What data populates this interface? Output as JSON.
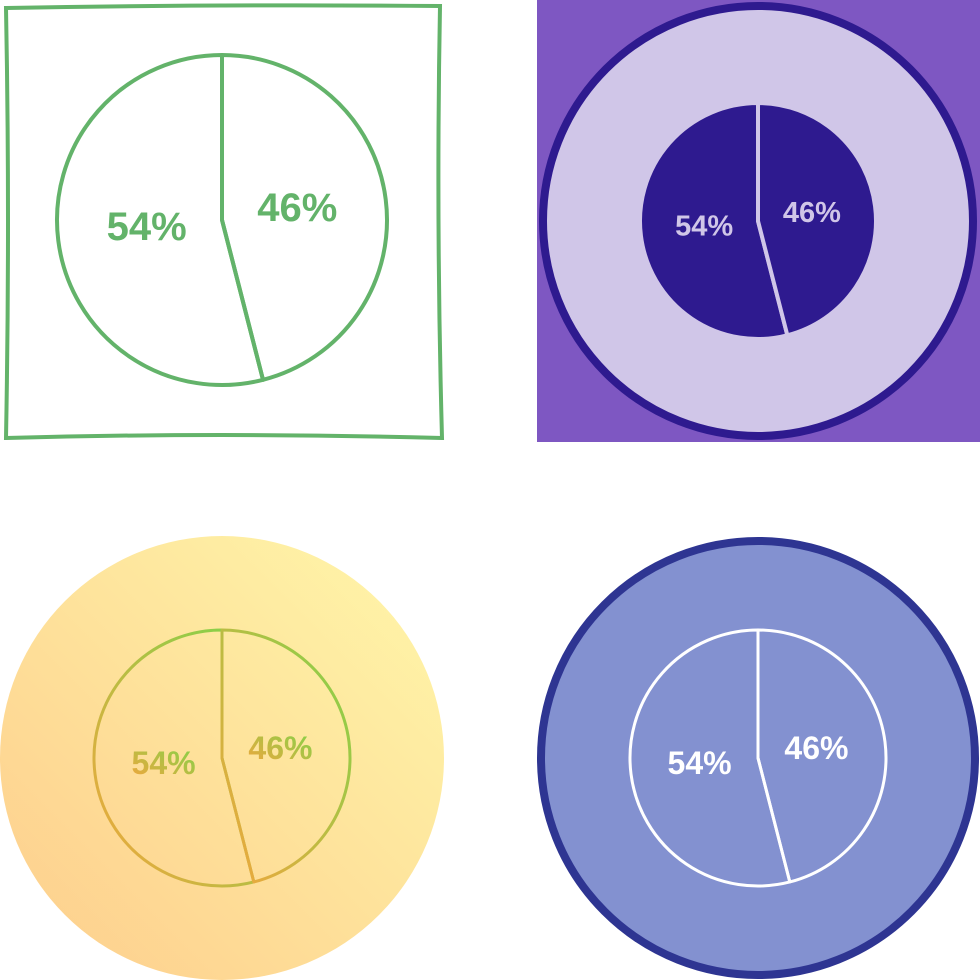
{
  "chart_data": [
    {
      "type": "pie",
      "values": [
        54,
        46
      ],
      "value_labels": [
        "54%",
        "46%"
      ]
    },
    {
      "type": "pie",
      "values": [
        54,
        46
      ],
      "value_labels": [
        "54%",
        "46%"
      ]
    },
    {
      "type": "pie",
      "values": [
        54,
        46
      ],
      "value_labels": [
        "54%",
        "46%"
      ]
    },
    {
      "type": "pie",
      "values": [
        54,
        46
      ],
      "value_labels": [
        "54%",
        "46%"
      ]
    }
  ]
}
